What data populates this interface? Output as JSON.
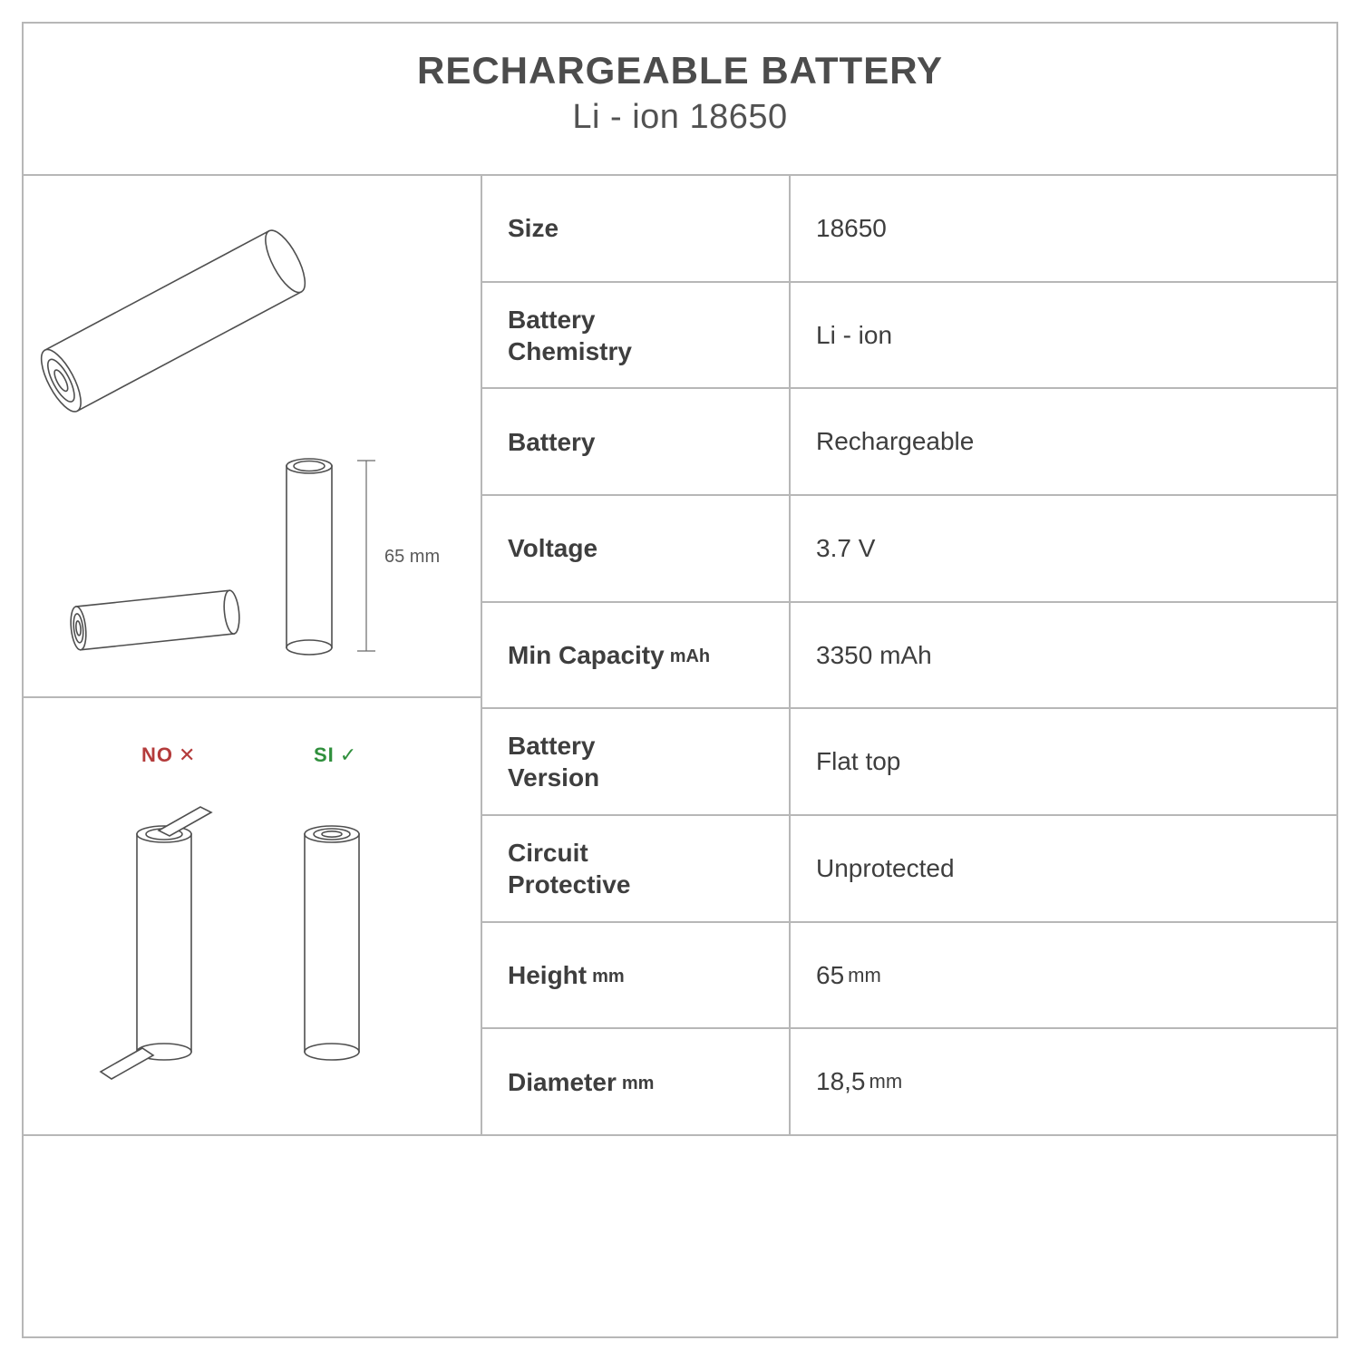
{
  "colors": {
    "border": "#b7b7b7",
    "text": "#3e3e3e",
    "title": "#4c4c4c",
    "stroke": "#4f4f4f",
    "no": "#b43b3b",
    "si": "#2f8f3c",
    "background": "#ffffff"
  },
  "header": {
    "title": "RECHARGEABLE BATTERY",
    "subtitle": "Li - ion 18650"
  },
  "illustration": {
    "height_label": "65 mm",
    "no_label": "NO",
    "no_mark": "✕",
    "si_label": "SI",
    "si_mark": "✓"
  },
  "specs": [
    {
      "label": "Size",
      "unit": "",
      "value": "18650",
      "value_unit": ""
    },
    {
      "label": "Battery\nChemistry",
      "unit": "",
      "value": "Li - ion",
      "value_unit": ""
    },
    {
      "label": "Battery",
      "unit": "",
      "value": "Rechargeable",
      "value_unit": ""
    },
    {
      "label": "Voltage",
      "unit": "",
      "value": "3.7 V",
      "value_unit": ""
    },
    {
      "label": "Min Capacity",
      "unit": "mAh",
      "value": "3350 mAh",
      "value_unit": ""
    },
    {
      "label": "Battery\nVersion",
      "unit": "",
      "value": "Flat top",
      "value_unit": ""
    },
    {
      "label": "Circuit\nProtective",
      "unit": "",
      "value": "Unprotected",
      "value_unit": ""
    },
    {
      "label": "Height",
      "unit": "mm",
      "value": "65",
      "value_unit": "mm"
    },
    {
      "label": "Diameter",
      "unit": "mm",
      "value": "18,5",
      "value_unit": "mm"
    }
  ]
}
